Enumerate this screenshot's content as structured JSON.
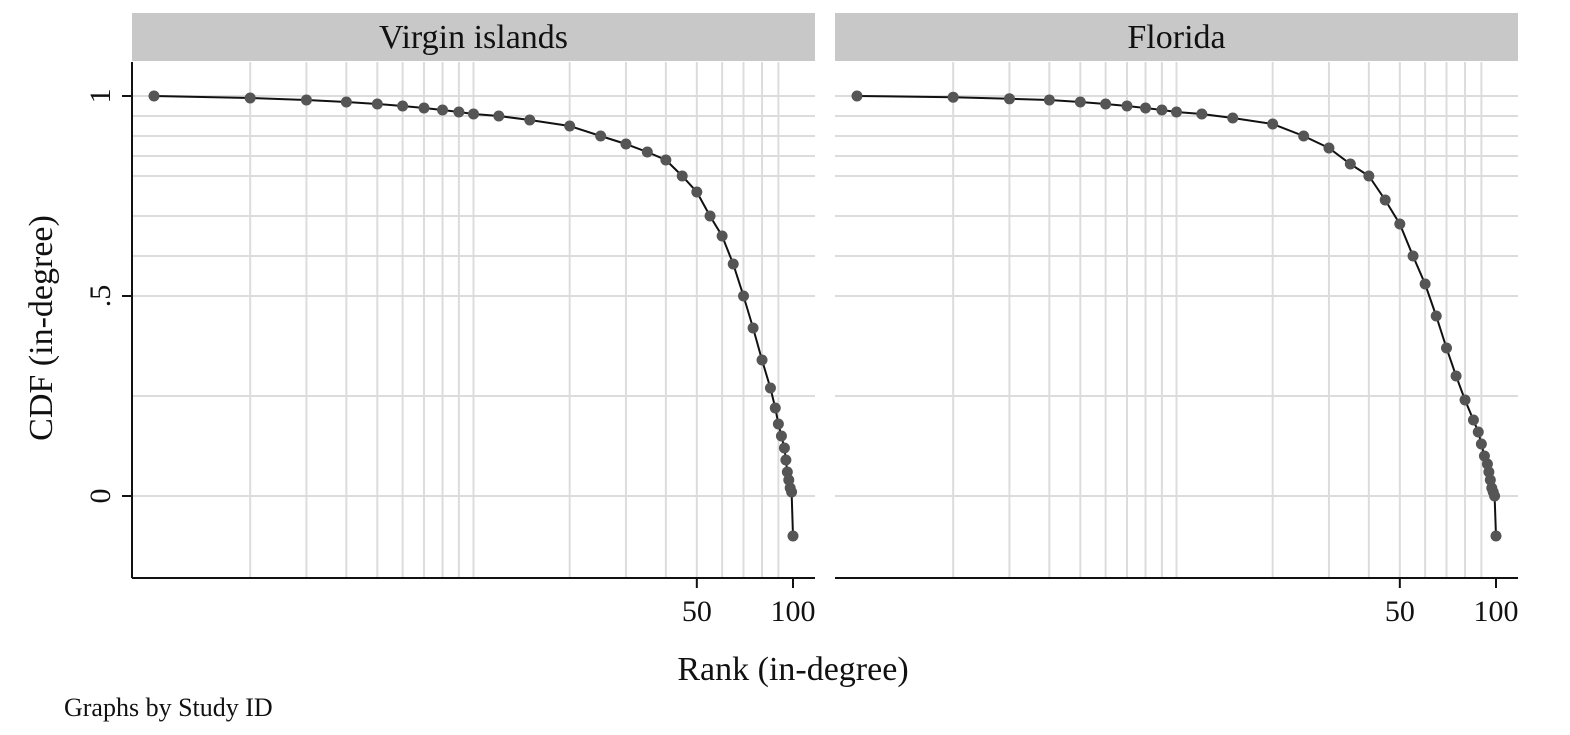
{
  "note": "Graphs by Study ID",
  "chart_data": {
    "type": "line",
    "xlabel": "Rank (in-degree)",
    "ylabel": "CDF (in-degree)",
    "yticks": [
      {
        "value": 0,
        "label": "0"
      },
      {
        "value": 0.5,
        "label": ".5"
      },
      {
        "value": 1,
        "label": "1"
      }
    ],
    "xticks": [
      {
        "value": 50,
        "label": "50"
      },
      {
        "value": 100,
        "label": "100"
      }
    ],
    "xlim": [
      1,
      100
    ],
    "ylim": [
      -0.15,
      1.03
    ],
    "x_scale": "log",
    "grid": true,
    "panels": [
      {
        "title": "Virgin islands",
        "series": [
          {
            "x": [
              1,
              2,
              3,
              4,
              5,
              6,
              7,
              8,
              9,
              10,
              12,
              15,
              20,
              25,
              30,
              35,
              40,
              45,
              50,
              55,
              60,
              65,
              70,
              75,
              80,
              85,
              88,
              90,
              92,
              94,
              95,
              96,
              97,
              98,
              99,
              100
            ],
            "y": [
              1.0,
              0.995,
              0.99,
              0.985,
              0.98,
              0.975,
              0.97,
              0.965,
              0.96,
              0.955,
              0.95,
              0.94,
              0.925,
              0.9,
              0.88,
              0.86,
              0.84,
              0.8,
              0.76,
              0.7,
              0.65,
              0.58,
              0.5,
              0.42,
              0.34,
              0.27,
              0.22,
              0.18,
              0.15,
              0.12,
              0.09,
              0.06,
              0.04,
              0.02,
              0.01,
              -0.1
            ]
          }
        ]
      },
      {
        "title": "Florida",
        "series": [
          {
            "x": [
              1,
              2,
              3,
              4,
              5,
              6,
              7,
              8,
              9,
              10,
              12,
              15,
              20,
              25,
              30,
              35,
              40,
              45,
              50,
              55,
              60,
              65,
              70,
              75,
              80,
              85,
              88,
              90,
              92,
              94,
              95,
              96,
              97,
              98,
              99,
              100
            ],
            "y": [
              1.0,
              0.997,
              0.993,
              0.99,
              0.985,
              0.98,
              0.975,
              0.97,
              0.965,
              0.96,
              0.955,
              0.945,
              0.93,
              0.9,
              0.87,
              0.83,
              0.8,
              0.74,
              0.68,
              0.6,
              0.53,
              0.45,
              0.37,
              0.3,
              0.24,
              0.19,
              0.16,
              0.13,
              0.1,
              0.08,
              0.06,
              0.04,
              0.02,
              0.01,
              0.0,
              -0.1
            ]
          }
        ]
      }
    ]
  }
}
